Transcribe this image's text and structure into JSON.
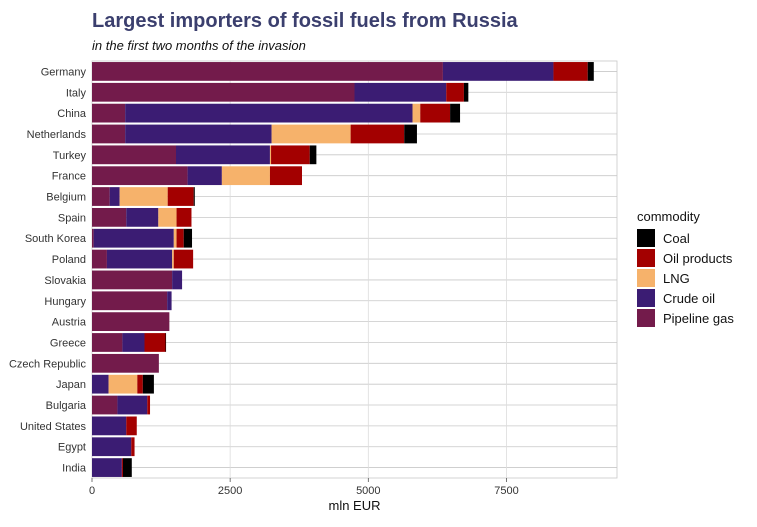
{
  "chart_data": {
    "type": "bar",
    "orientation": "horizontal",
    "stacked": true,
    "title": "Largest importers of fossil fuels from Russia",
    "subtitle": "in the first two months of the invasion",
    "xlabel": "mln EUR",
    "xlim": [
      0,
      9500
    ],
    "xticks": [
      0,
      2500,
      5000,
      7500
    ],
    "xtick_labels": [
      "0",
      "2500",
      "5000",
      "7500"
    ],
    "grid": true,
    "legend": {
      "title": "commodity",
      "position": "right",
      "entries": [
        "Coal",
        "Oil products",
        "LNG",
        "Crude oil",
        "Pipeline gas"
      ]
    },
    "stack_order": [
      "Pipeline gas",
      "Crude oil",
      "LNG",
      "Oil products",
      "Coal"
    ],
    "colors": {
      "Pipeline gas": "#731b4b",
      "Crude oil": "#3b1c73",
      "LNG": "#f6b26b",
      "Oil products": "#a30000",
      "Coal": "#000000"
    },
    "categories": [
      "Germany",
      "Italy",
      "China",
      "Netherlands",
      "Turkey",
      "France",
      "Belgium",
      "Spain",
      "South Korea",
      "Poland",
      "Slovakia",
      "Hungary",
      "Austria",
      "Greece",
      "Czech Republic",
      "Japan",
      "Bulgaria",
      "United States",
      "Egypt",
      "India"
    ],
    "series": [
      {
        "name": "Pipeline gas",
        "values": [
          6350,
          4750,
          600,
          600,
          1520,
          1730,
          320,
          620,
          30,
          270,
          1450,
          1360,
          1400,
          550,
          1210,
          0,
          460,
          0,
          0,
          0
        ]
      },
      {
        "name": "Crude oil",
        "values": [
          2000,
          1660,
          5200,
          2650,
          1700,
          620,
          180,
          580,
          1450,
          1180,
          180,
          80,
          0,
          400,
          0,
          300,
          540,
          620,
          710,
          540
        ]
      },
      {
        "name": "LNG",
        "values": [
          0,
          0,
          140,
          1430,
          20,
          870,
          870,
          330,
          50,
          30,
          0,
          0,
          0,
          0,
          0,
          520,
          0,
          0,
          0,
          0
        ]
      },
      {
        "name": "Oil products",
        "values": [
          620,
          320,
          540,
          970,
          700,
          580,
          470,
          270,
          130,
          350,
          0,
          0,
          0,
          380,
          0,
          100,
          50,
          190,
          60,
          20
        ]
      },
      {
        "name": "Coal",
        "values": [
          110,
          80,
          180,
          230,
          120,
          0,
          20,
          0,
          150,
          0,
          0,
          0,
          0,
          10,
          0,
          200,
          0,
          0,
          0,
          160
        ]
      }
    ]
  }
}
